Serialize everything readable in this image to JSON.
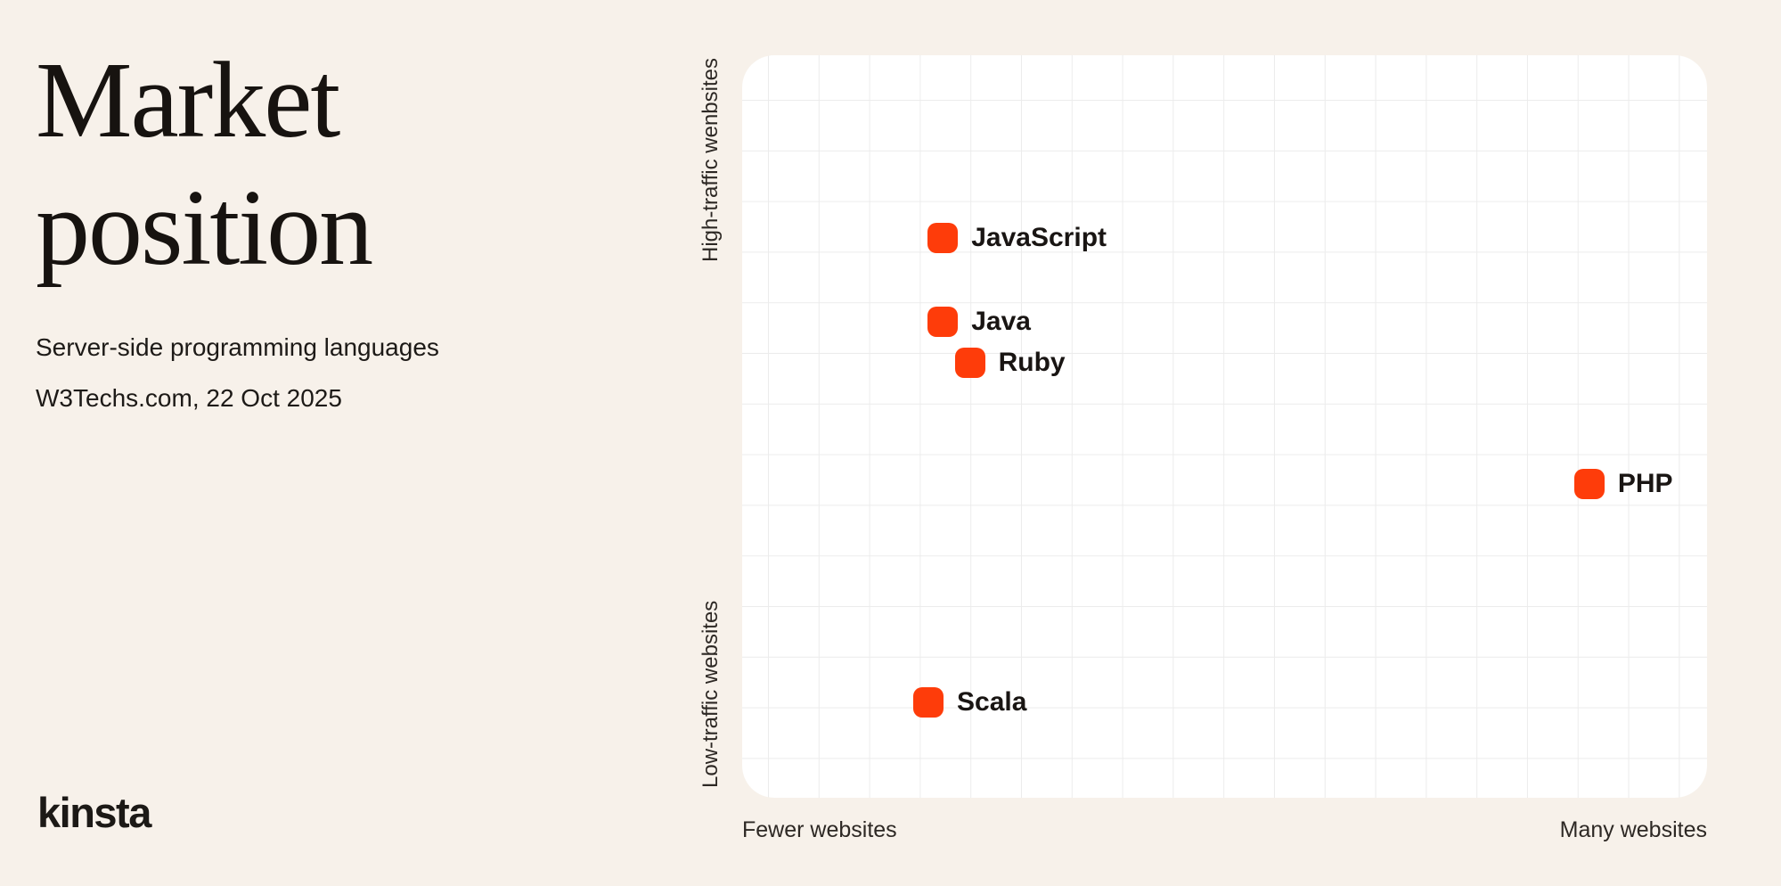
{
  "page": {
    "background_color": "#F7F1EA",
    "accent_color": "#FE3C0A"
  },
  "left_panel": {
    "title_line1": "Market",
    "title_line2": "position",
    "subtitle": "Server-side programming languages",
    "source": "W3Techs.com, 22 Oct 2025",
    "logo_text": "kinsta"
  },
  "chart": {
    "y_axis_top_label": "High-traffic wenbsites",
    "y_axis_bottom_label": "Low-traffic websites",
    "x_axis_left_label": "Fewer websites",
    "x_axis_right_label": "Many websites"
  },
  "chart_data": {
    "type": "scatter",
    "title": "Market position",
    "subtitle": "Server-side programming languages",
    "source": "W3Techs.com, 22 Oct 2025",
    "x_axis": {
      "left_label": "Fewer websites",
      "right_label": "Many websites"
    },
    "y_axis": {
      "top_label": "High-traffic wenbsites",
      "bottom_label": "Low-traffic websites"
    },
    "grid": true,
    "marker_color": "#FE3C0A",
    "marker_shape": "rounded-square",
    "points": [
      {
        "label": "JavaScript",
        "x_pct": 20.8,
        "y_pct": 24.6
      },
      {
        "label": "Java",
        "x_pct": 20.8,
        "y_pct": 35.9
      },
      {
        "label": "Ruby",
        "x_pct": 23.6,
        "y_pct": 41.4
      },
      {
        "label": "PHP",
        "x_pct": 87.8,
        "y_pct": 57.7
      },
      {
        "label": "Scala",
        "x_pct": 19.3,
        "y_pct": 87.2
      }
    ]
  }
}
